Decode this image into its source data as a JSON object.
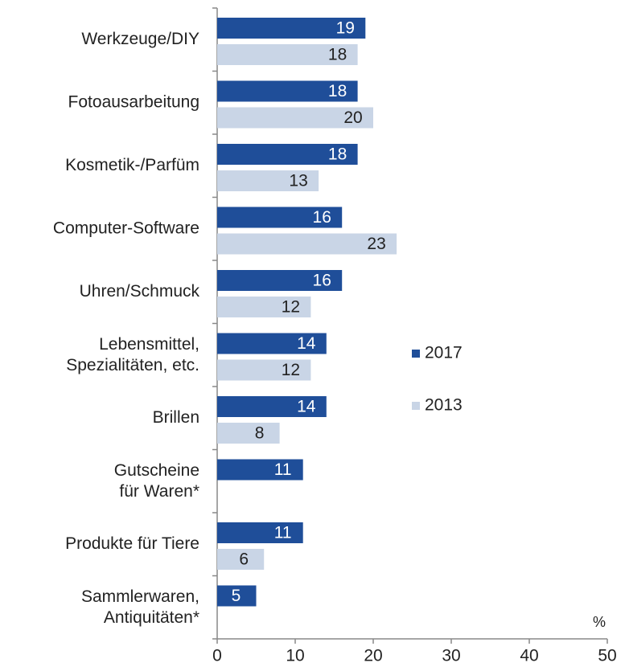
{
  "chart_data": {
    "type": "bar",
    "orientation": "horizontal",
    "categories": [
      "Werkzeuge/DIY",
      "Fotoausarbeitung",
      "Kosmetik-/Parfüm",
      "Computer-Software",
      "Uhren/Schmuck",
      "Lebensmittel,\nSpezialitäten, etc.",
      "Brillen",
      "Gutscheine\nfür Waren*",
      "Produkte für Tiere",
      "Sammlerwaren,\nAntiquitäten*"
    ],
    "series": [
      {
        "name": "2017",
        "color": "#1f4e99",
        "values": [
          19,
          18,
          18,
          16,
          16,
          14,
          14,
          11,
          11,
          5
        ]
      },
      {
        "name": "2013",
        "color": "#c9d5e6",
        "values": [
          18,
          20,
          13,
          23,
          12,
          12,
          8,
          null,
          6,
          null
        ]
      }
    ],
    "x_label": "%",
    "xlim": [
      0,
      50
    ],
    "xticks": [
      0,
      10,
      20,
      30,
      40,
      50
    ],
    "legend": "right"
  }
}
